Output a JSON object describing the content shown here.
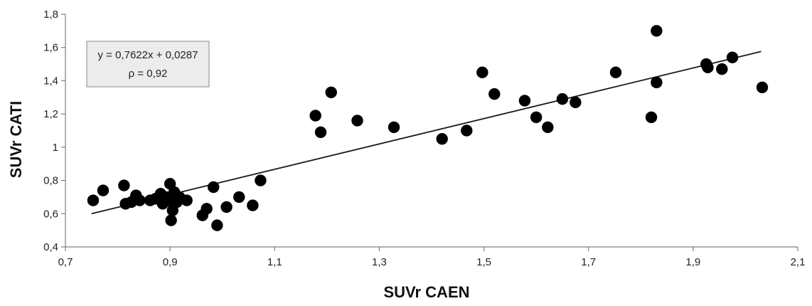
{
  "chart_data": {
    "type": "scatter",
    "title": "",
    "xlabel": "SUVr CAEN",
    "ylabel": "SUVr CATI",
    "xlim": [
      0.7,
      2.1
    ],
    "ylim": [
      0.4,
      1.8
    ],
    "xticks": [
      "0,7",
      "0,9",
      "1,1",
      "1,3",
      "1,5",
      "1,7",
      "1,9",
      "2,1"
    ],
    "yticks": [
      "0,4",
      "0,6",
      "0,8",
      "1",
      "1,2",
      "1,4",
      "1,6",
      "1,8"
    ],
    "grid": false,
    "annotation": {
      "equation": "y = 0,7622x + 0,0287",
      "rho": "ρ = 0,92"
    },
    "regression": {
      "slope": 0.7622,
      "intercept": 0.0287,
      "x_start": 0.75,
      "x_end": 2.03
    },
    "points": [
      {
        "x": 0.753,
        "y": 0.68
      },
      {
        "x": 0.772,
        "y": 0.74
      },
      {
        "x": 0.812,
        "y": 0.77
      },
      {
        "x": 0.815,
        "y": 0.66
      },
      {
        "x": 0.826,
        "y": 0.67
      },
      {
        "x": 0.835,
        "y": 0.71
      },
      {
        "x": 0.842,
        "y": 0.68
      },
      {
        "x": 0.862,
        "y": 0.68
      },
      {
        "x": 0.872,
        "y": 0.69
      },
      {
        "x": 0.882,
        "y": 0.72
      },
      {
        "x": 0.886,
        "y": 0.66
      },
      {
        "x": 0.892,
        "y": 0.7
      },
      {
        "x": 0.897,
        "y": 0.68
      },
      {
        "x": 0.9,
        "y": 0.78
      },
      {
        "x": 0.902,
        "y": 0.56
      },
      {
        "x": 0.905,
        "y": 0.62
      },
      {
        "x": 0.908,
        "y": 0.73
      },
      {
        "x": 0.913,
        "y": 0.67
      },
      {
        "x": 0.918,
        "y": 0.7
      },
      {
        "x": 0.932,
        "y": 0.68
      },
      {
        "x": 0.962,
        "y": 0.59
      },
      {
        "x": 0.97,
        "y": 0.63
      },
      {
        "x": 0.983,
        "y": 0.76
      },
      {
        "x": 0.99,
        "y": 0.53
      },
      {
        "x": 1.008,
        "y": 0.64
      },
      {
        "x": 1.032,
        "y": 0.7
      },
      {
        "x": 1.058,
        "y": 0.65
      },
      {
        "x": 1.073,
        "y": 0.8
      },
      {
        "x": 1.178,
        "y": 1.19
      },
      {
        "x": 1.188,
        "y": 1.09
      },
      {
        "x": 1.208,
        "y": 1.33
      },
      {
        "x": 1.258,
        "y": 1.16
      },
      {
        "x": 1.328,
        "y": 1.12
      },
      {
        "x": 1.42,
        "y": 1.05
      },
      {
        "x": 1.467,
        "y": 1.1
      },
      {
        "x": 1.497,
        "y": 1.45
      },
      {
        "x": 1.52,
        "y": 1.32
      },
      {
        "x": 1.578,
        "y": 1.28
      },
      {
        "x": 1.6,
        "y": 1.18
      },
      {
        "x": 1.622,
        "y": 1.12
      },
      {
        "x": 1.65,
        "y": 1.29
      },
      {
        "x": 1.675,
        "y": 1.27
      },
      {
        "x": 1.752,
        "y": 1.45
      },
      {
        "x": 1.82,
        "y": 1.18
      },
      {
        "x": 1.83,
        "y": 1.39
      },
      {
        "x": 1.83,
        "y": 1.7
      },
      {
        "x": 1.925,
        "y": 1.5
      },
      {
        "x": 1.928,
        "y": 1.48
      },
      {
        "x": 1.955,
        "y": 1.47
      },
      {
        "x": 1.975,
        "y": 1.54
      },
      {
        "x": 2.032,
        "y": 1.36
      }
    ]
  },
  "colors": {
    "marker": "#000000",
    "line": "#1a1a1a",
    "axis": "#7f7f7f",
    "annotation_fill": "#ececec",
    "annotation_border": "#8a8a8a"
  }
}
